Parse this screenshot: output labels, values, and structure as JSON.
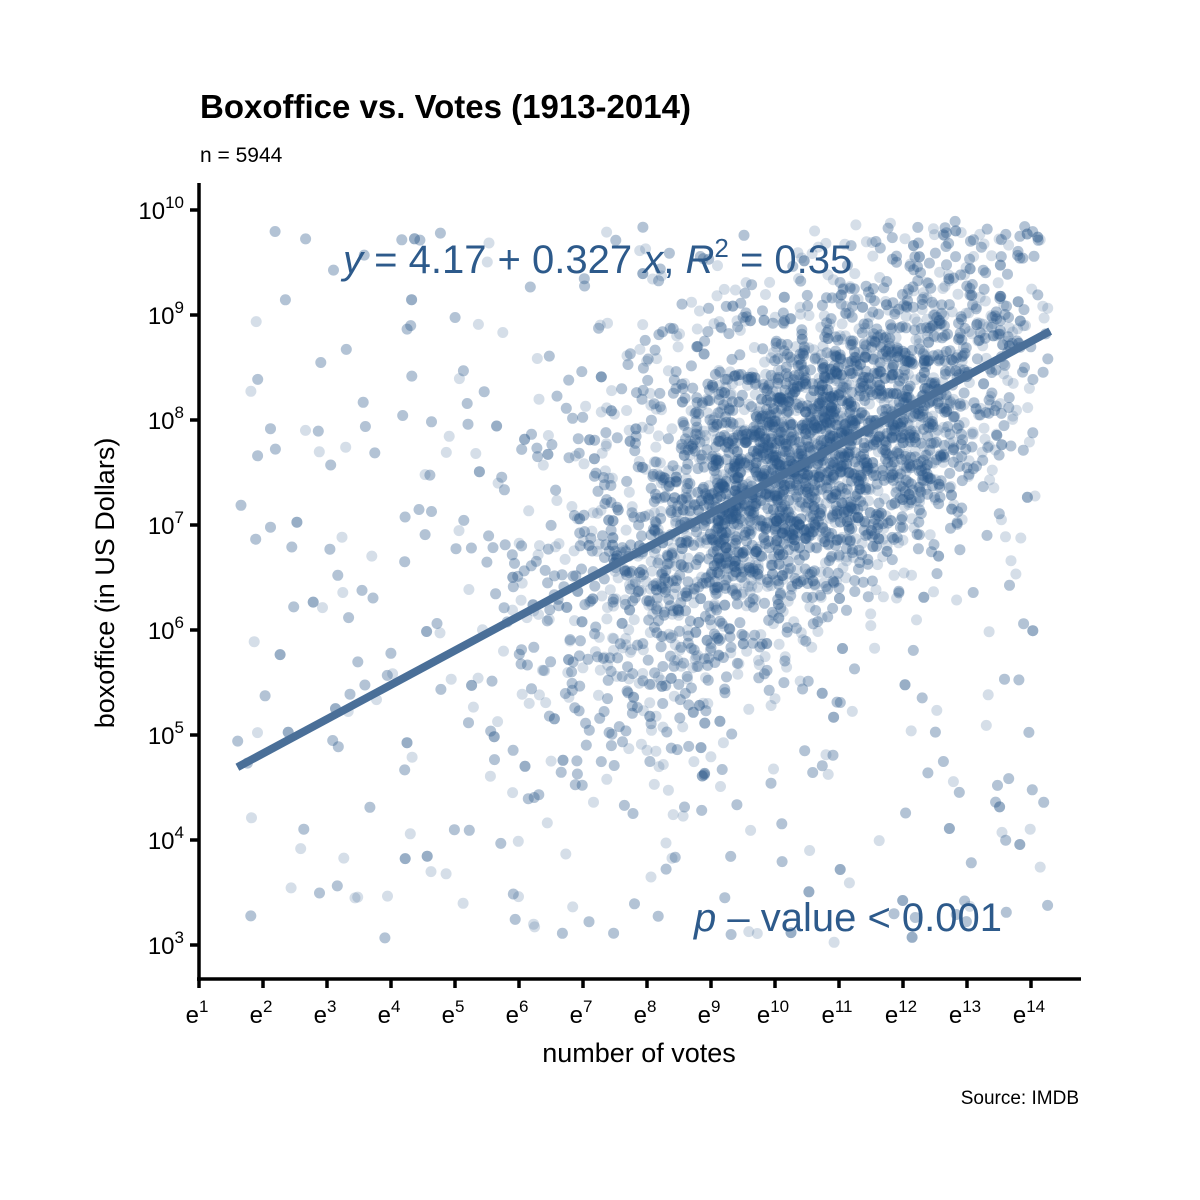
{
  "chart_data": {
    "type": "scatter",
    "title": "Boxoffice vs. Votes (1913-2014)",
    "subtitle": "n = 5944",
    "xlabel": "number of votes",
    "ylabel": "boxoffice (in US Dollars)",
    "caption": "Source: IMDB",
    "x_scale": "log (base e)",
    "y_scale": "log (base 10)",
    "x_ticks": [
      {
        "base": "e",
        "exp": "1"
      },
      {
        "base": "e",
        "exp": "2"
      },
      {
        "base": "e",
        "exp": "3"
      },
      {
        "base": "e",
        "exp": "4"
      },
      {
        "base": "e",
        "exp": "5"
      },
      {
        "base": "e",
        "exp": "6"
      },
      {
        "base": "e",
        "exp": "7"
      },
      {
        "base": "e",
        "exp": "8"
      },
      {
        "base": "e",
        "exp": "9"
      },
      {
        "base": "e",
        "exp": "10"
      },
      {
        "base": "e",
        "exp": "11"
      },
      {
        "base": "e",
        "exp": "12"
      },
      {
        "base": "e",
        "exp": "13"
      },
      {
        "base": "e",
        "exp": "14"
      }
    ],
    "y_ticks": [
      {
        "base": "10",
        "exp": "3"
      },
      {
        "base": "10",
        "exp": "4"
      },
      {
        "base": "10",
        "exp": "5"
      },
      {
        "base": "10",
        "exp": "6"
      },
      {
        "base": "10",
        "exp": "7"
      },
      {
        "base": "10",
        "exp": "8"
      },
      {
        "base": "10",
        "exp": "9"
      },
      {
        "base": "10",
        "exp": "10"
      }
    ],
    "xlim_ln": [
      1,
      14.8
    ],
    "ylim_log10": [
      2.7,
      10.25
    ],
    "n": 5944,
    "regression": {
      "intercept": 4.17,
      "slope": 0.327,
      "r2": 0.35,
      "x_range_ln": [
        1.6,
        14.3
      ]
    },
    "point_color": "#2d5a8b",
    "line_color": "#4a6f98",
    "annotations": {
      "equation": {
        "y": "y",
        "eq": " = 4.17 + 0.327 ",
        "x": "x",
        "sep": ",  ",
        "r": "R",
        "two": "2",
        "r2val": " = 0.35"
      },
      "pvalue": {
        "p": "p",
        "rest": " – value < 0.001"
      }
    }
  }
}
